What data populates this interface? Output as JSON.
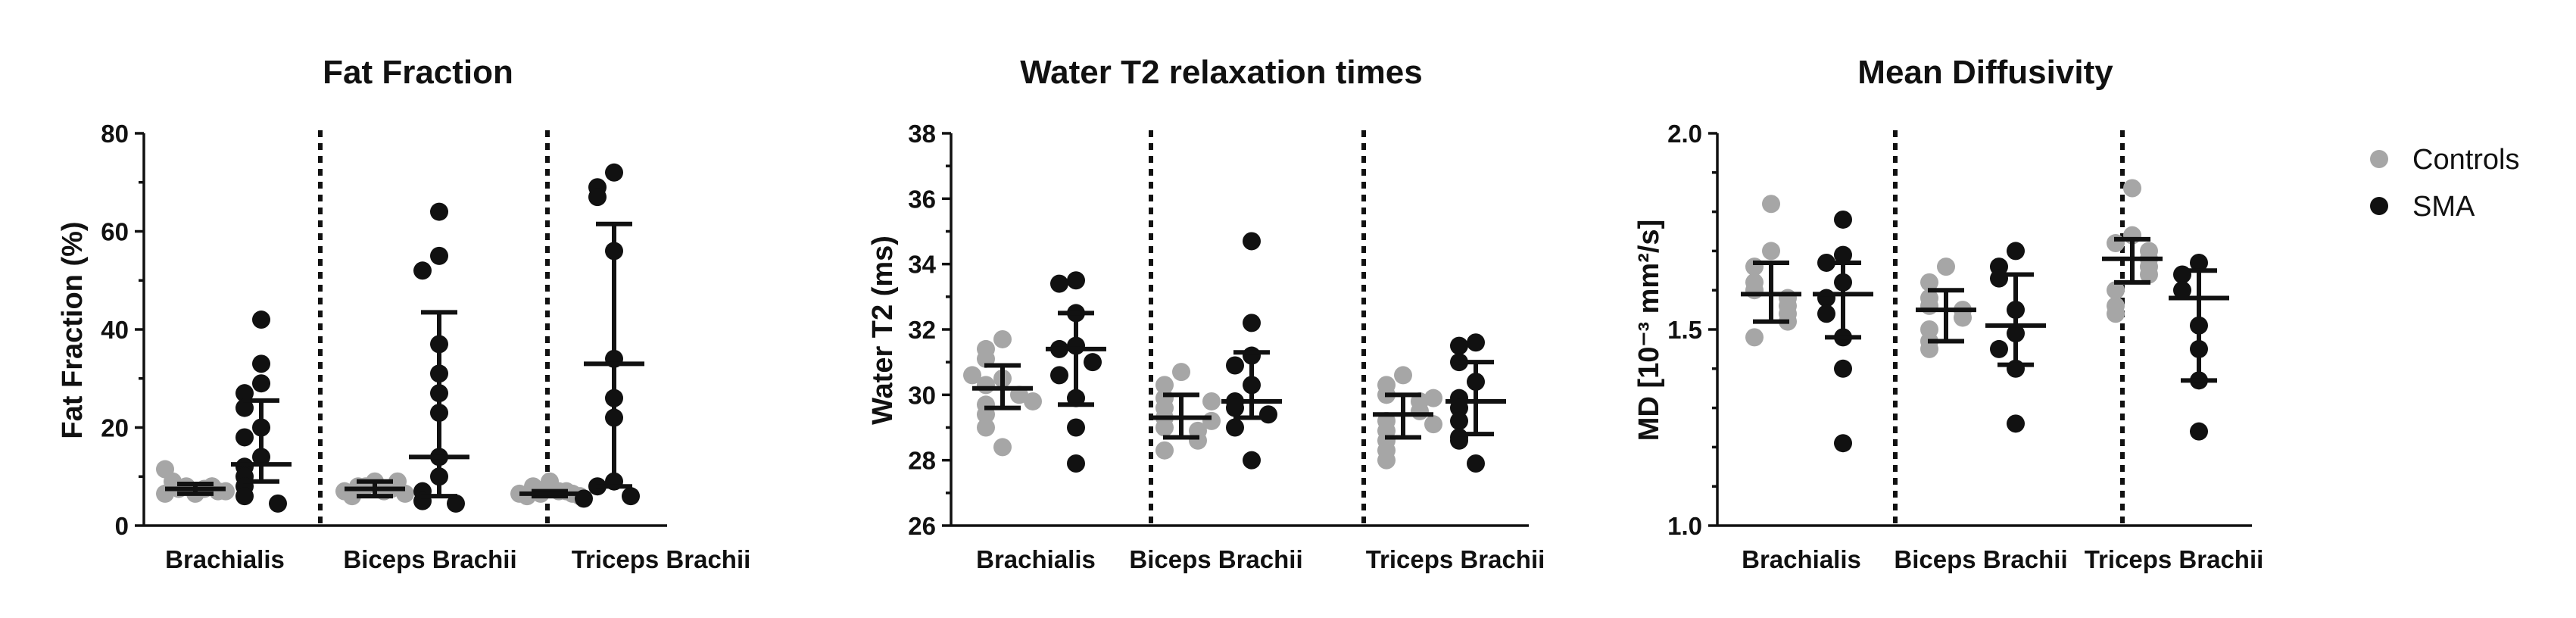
{
  "legend": {
    "items": [
      {
        "label": "Controls",
        "color": "#a6a6a6"
      },
      {
        "label": "SMA",
        "color": "#111111"
      }
    ]
  },
  "chart_data": [
    {
      "type": "scatter",
      "title": "Fat Fraction",
      "ylabel": "Fat Fraction (%)",
      "ylim": [
        0,
        80
      ],
      "yticks": [
        "0",
        "20",
        "40",
        "60",
        "80"
      ],
      "categories": [
        "Brachialis",
        "Biceps Brachii",
        "Triceps Brachii"
      ],
      "groups": [
        {
          "category": "Brachialis",
          "series": "Controls",
          "median": 7.5,
          "lower": 6.5,
          "upper": 8.5,
          "values": [
            7,
            7.5,
            8,
            6.5,
            7,
            8,
            7.5,
            9,
            11.5,
            7,
            6.5,
            8
          ]
        },
        {
          "category": "Brachialis",
          "series": "SMA",
          "median": 12.5,
          "lower": 9,
          "upper": 25.5,
          "values": [
            42,
            33,
            29,
            27,
            24,
            20,
            18,
            14,
            12,
            10,
            8,
            6,
            4.5
          ]
        },
        {
          "category": "Biceps Brachii",
          "series": "Controls",
          "median": 7.5,
          "lower": 6,
          "upper": 9,
          "values": [
            9,
            8,
            7.5,
            7,
            6.5,
            8,
            7,
            6,
            9
          ]
        },
        {
          "category": "Biceps Brachii",
          "series": "SMA",
          "median": 14,
          "lower": 6,
          "upper": 43.5,
          "values": [
            64,
            55,
            52,
            37,
            31,
            27,
            23,
            14,
            10,
            7,
            5,
            4.5
          ]
        },
        {
          "category": "Triceps Brachii",
          "series": "Controls",
          "median": 6.5,
          "lower": 6,
          "upper": 7,
          "values": [
            9,
            8,
            7,
            6.5,
            6,
            6.5,
            7,
            6,
            6.5
          ]
        },
        {
          "category": "Triceps Brachii",
          "series": "SMA",
          "median": 33,
          "lower": 8,
          "upper": 61.5,
          "values": [
            72,
            69,
            67,
            56,
            34,
            26,
            22,
            9,
            8,
            6,
            5.5
          ]
        }
      ]
    },
    {
      "type": "scatter",
      "title": "Water T2 relaxation times",
      "ylabel": "Water T2 (ms)",
      "ylim": [
        26,
        38
      ],
      "yticks": [
        "26",
        "28",
        "30",
        "32",
        "34",
        "36",
        "38"
      ],
      "categories": [
        "Brachialis",
        "Biceps Brachii",
        "Triceps Brachii"
      ],
      "groups": [
        {
          "category": "Brachialis",
          "series": "Controls",
          "median": 30.2,
          "lower": 29.6,
          "upper": 30.9,
          "values": [
            31.7,
            31.4,
            31.1,
            30.5,
            30.3,
            30.0,
            29.7,
            29.4,
            29.0,
            28.4,
            29.8,
            30.6
          ]
        },
        {
          "category": "Brachialis",
          "series": "SMA",
          "median": 31.4,
          "lower": 29.7,
          "upper": 32.5,
          "values": [
            33.5,
            33.4,
            32.5,
            31.5,
            31.4,
            31.0,
            30.6,
            29.9,
            29.0,
            27.9
          ]
        },
        {
          "category": "Biceps Brachii",
          "series": "Controls",
          "median": 29.3,
          "lower": 28.7,
          "upper": 30.0,
          "values": [
            30.7,
            30.3,
            29.9,
            29.6,
            29.3,
            29.0,
            28.9,
            28.6,
            28.3,
            29.8,
            29.2
          ]
        },
        {
          "category": "Biceps Brachii",
          "series": "SMA",
          "median": 29.8,
          "lower": 29.3,
          "upper": 31.3,
          "values": [
            34.7,
            32.2,
            31.2,
            30.9,
            30.3,
            29.8,
            29.6,
            29.4,
            29.0,
            28.0
          ]
        },
        {
          "category": "Triceps Brachii",
          "series": "Controls",
          "median": 29.4,
          "lower": 28.7,
          "upper": 30.0,
          "values": [
            30.6,
            30.3,
            30.0,
            29.8,
            29.5,
            29.2,
            28.9,
            28.6,
            28.3,
            28.0,
            29.9,
            29.1
          ]
        },
        {
          "category": "Triceps Brachii",
          "series": "SMA",
          "median": 29.8,
          "lower": 28.8,
          "upper": 31.0,
          "values": [
            31.6,
            31.5,
            31.0,
            30.4,
            29.9,
            29.6,
            29.2,
            28.7,
            28.6,
            27.9
          ]
        }
      ]
    },
    {
      "type": "scatter",
      "title": "Mean Diffusivity",
      "ylabel": "MD [10⁻³ mm²/s]",
      "ylim": [
        1.0,
        2.0
      ],
      "yticks": [
        "1.0",
        "1.5",
        "2.0"
      ],
      "categories": [
        "Brachialis",
        "Biceps Brachii",
        "Triceps Brachii"
      ],
      "groups": [
        {
          "category": "Brachialis",
          "series": "Controls",
          "median": 1.59,
          "lower": 1.52,
          "upper": 1.67,
          "values": [
            1.82,
            1.7,
            1.66,
            1.62,
            1.6,
            1.58,
            1.56,
            1.54,
            1.52,
            1.48
          ]
        },
        {
          "category": "Brachialis",
          "series": "SMA",
          "median": 1.59,
          "lower": 1.48,
          "upper": 1.67,
          "values": [
            1.78,
            1.69,
            1.67,
            1.62,
            1.58,
            1.54,
            1.48,
            1.4,
            1.21
          ]
        },
        {
          "category": "Biceps Brachii",
          "series": "Controls",
          "median": 1.55,
          "lower": 1.47,
          "upper": 1.6,
          "values": [
            1.66,
            1.62,
            1.58,
            1.56,
            1.55,
            1.53,
            1.5,
            1.47,
            1.45
          ]
        },
        {
          "category": "Biceps Brachii",
          "series": "SMA",
          "median": 1.51,
          "lower": 1.41,
          "upper": 1.64,
          "values": [
            1.7,
            1.66,
            1.63,
            1.55,
            1.49,
            1.45,
            1.4,
            1.26
          ]
        },
        {
          "category": "Triceps Brachii",
          "series": "Controls",
          "median": 1.68,
          "lower": 1.62,
          "upper": 1.73,
          "values": [
            1.86,
            1.74,
            1.72,
            1.7,
            1.68,
            1.66,
            1.64,
            1.6,
            1.56,
            1.54
          ]
        },
        {
          "category": "Triceps Brachii",
          "series": "SMA",
          "median": 1.58,
          "lower": 1.37,
          "upper": 1.65,
          "values": [
            1.67,
            1.64,
            1.6,
            1.51,
            1.45,
            1.37,
            1.24
          ]
        }
      ]
    }
  ]
}
